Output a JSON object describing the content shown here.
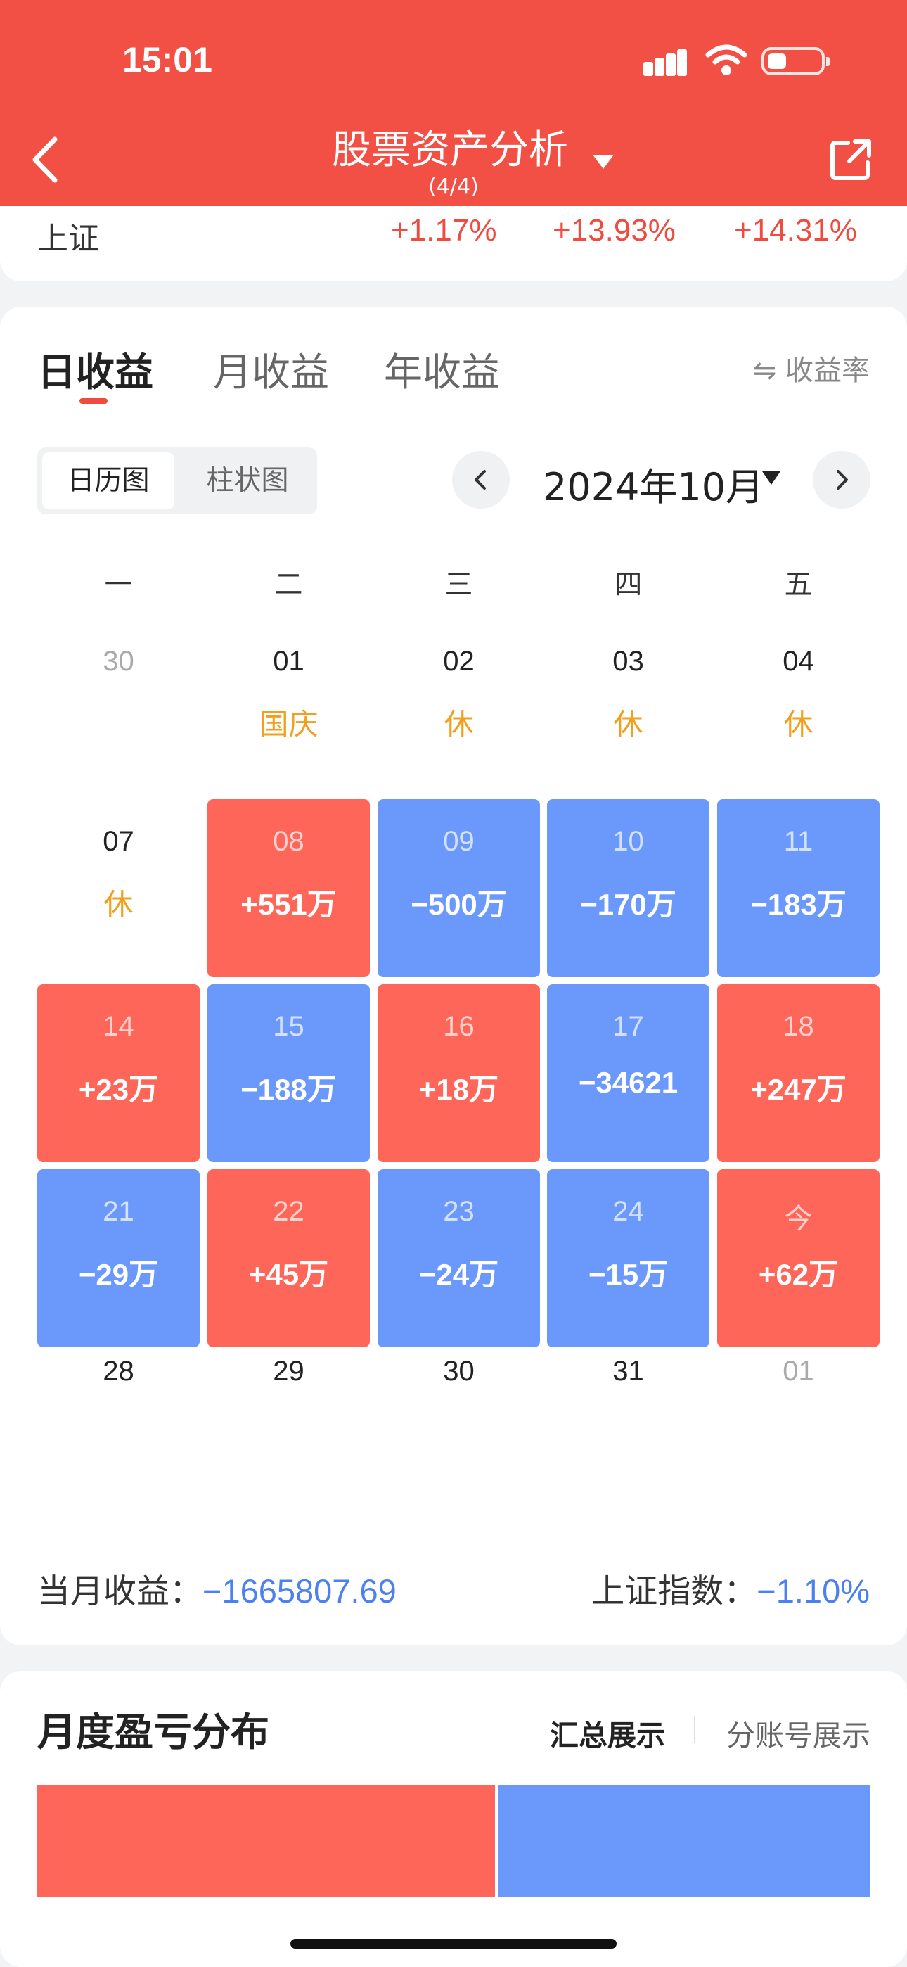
{
  "status_bar": {
    "time": "15:01"
  },
  "header": {
    "title": "股票资产分析",
    "subtitle": "(4/4)"
  },
  "index_row": {
    "name": "上证",
    "values": [
      "+1.17%",
      "+13.93%",
      "+14.31%"
    ]
  },
  "tabs": [
    "日收益",
    "月收益",
    "年收益"
  ],
  "rate_toggle": "⇋ 收益率",
  "segment": {
    "calendar": "日历图",
    "bar": "柱状图"
  },
  "month": "2024年10月",
  "weekdays": [
    "一",
    "二",
    "三",
    "四",
    "五"
  ],
  "calendar": [
    [
      {
        "d": "30",
        "n": "",
        "k": "out"
      },
      {
        "d": "01",
        "n": "国庆",
        "k": "tag"
      },
      {
        "d": "02",
        "n": "休",
        "k": "tag"
      },
      {
        "d": "03",
        "n": "休",
        "k": "tag"
      },
      {
        "d": "04",
        "n": "休",
        "k": "tag"
      }
    ],
    [
      {
        "d": "07",
        "n": "休",
        "k": "tag"
      },
      {
        "d": "08",
        "n": "+551万",
        "k": "red"
      },
      {
        "d": "09",
        "n": "−500万",
        "k": "blue"
      },
      {
        "d": "10",
        "n": "−170万",
        "k": "blue"
      },
      {
        "d": "11",
        "n": "−183万",
        "k": "blue"
      }
    ],
    [
      {
        "d": "14",
        "n": "+23万",
        "k": "red"
      },
      {
        "d": "15",
        "n": "−188万",
        "k": "blue"
      },
      {
        "d": "16",
        "n": "+18万",
        "k": "red"
      },
      {
        "d": "17",
        "n": "−34621",
        "k": "blue"
      },
      {
        "d": "18",
        "n": "+247万",
        "k": "red"
      }
    ],
    [
      {
        "d": "21",
        "n": "−29万",
        "k": "blue"
      },
      {
        "d": "22",
        "n": "+45万",
        "k": "red"
      },
      {
        "d": "23",
        "n": "−24万",
        "k": "blue"
      },
      {
        "d": "24",
        "n": "−15万",
        "k": "blue"
      },
      {
        "d": "今",
        "n": "+62万",
        "k": "red"
      }
    ],
    [
      {
        "d": "28",
        "n": "",
        "k": "plain"
      },
      {
        "d": "29",
        "n": "",
        "k": "plain"
      },
      {
        "d": "30",
        "n": "",
        "k": "plain"
      },
      {
        "d": "31",
        "n": "",
        "k": "plain"
      },
      {
        "d": "01",
        "n": "",
        "k": "out"
      }
    ]
  ],
  "footer": {
    "month_profit_label": "当月收益：",
    "month_profit_value": "−1665807.69",
    "index_label": "上证指数：",
    "index_value": "−1.10%"
  },
  "distribution": {
    "title": "月度盈亏分布",
    "summary_label": "汇总展示",
    "by_account_label": "分账号展示",
    "profit_share": 0.55
  },
  "colors": {
    "brand": "#f35045",
    "profit": "#fd6659",
    "loss": "#6b99fb",
    "holiday": "#f0a01e"
  }
}
